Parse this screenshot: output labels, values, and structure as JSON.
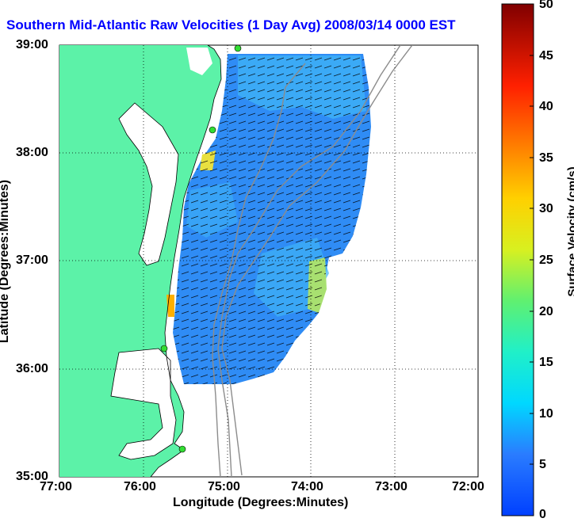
{
  "title": "Southern Mid-Atlantic Raw Velocities (1 Day Avg) 2008/03/14 0000 EST",
  "axes": {
    "xlabel": "Longitude (Degrees:Minutes)",
    "ylabel": "Latitude (Degrees:Minutes)",
    "xticks": [
      "77:00",
      "76:00",
      "75:00",
      "74:00",
      "73:00",
      "72:00"
    ],
    "yticks": [
      "39:00",
      "38:00",
      "37:00",
      "36:00",
      "35:00"
    ],
    "grid": "dotted"
  },
  "colorbar": {
    "label": "Surface Velocity (cm/s)",
    "ticks": [
      "50",
      "45",
      "40",
      "35",
      "30",
      "25",
      "20",
      "15",
      "10",
      "5",
      "0"
    ],
    "range": [
      0,
      50
    ]
  },
  "colors": {
    "land": "#5cf2a8",
    "water": "#ffffff",
    "field_main": "#2f8cf5",
    "field_light": "#3fb2f6",
    "station": "#33dd33"
  },
  "stations": [
    {
      "name": "station-north",
      "lon": -74.84,
      "lat": 38.95
    },
    {
      "name": "station-delmarva",
      "lon": -75.16,
      "lat": 38.19
    },
    {
      "name": "station-virginia-beach",
      "lon": -75.73,
      "lat": 36.17
    },
    {
      "name": "station-hatteras",
      "lon": -75.52,
      "lat": 35.27
    }
  ]
}
